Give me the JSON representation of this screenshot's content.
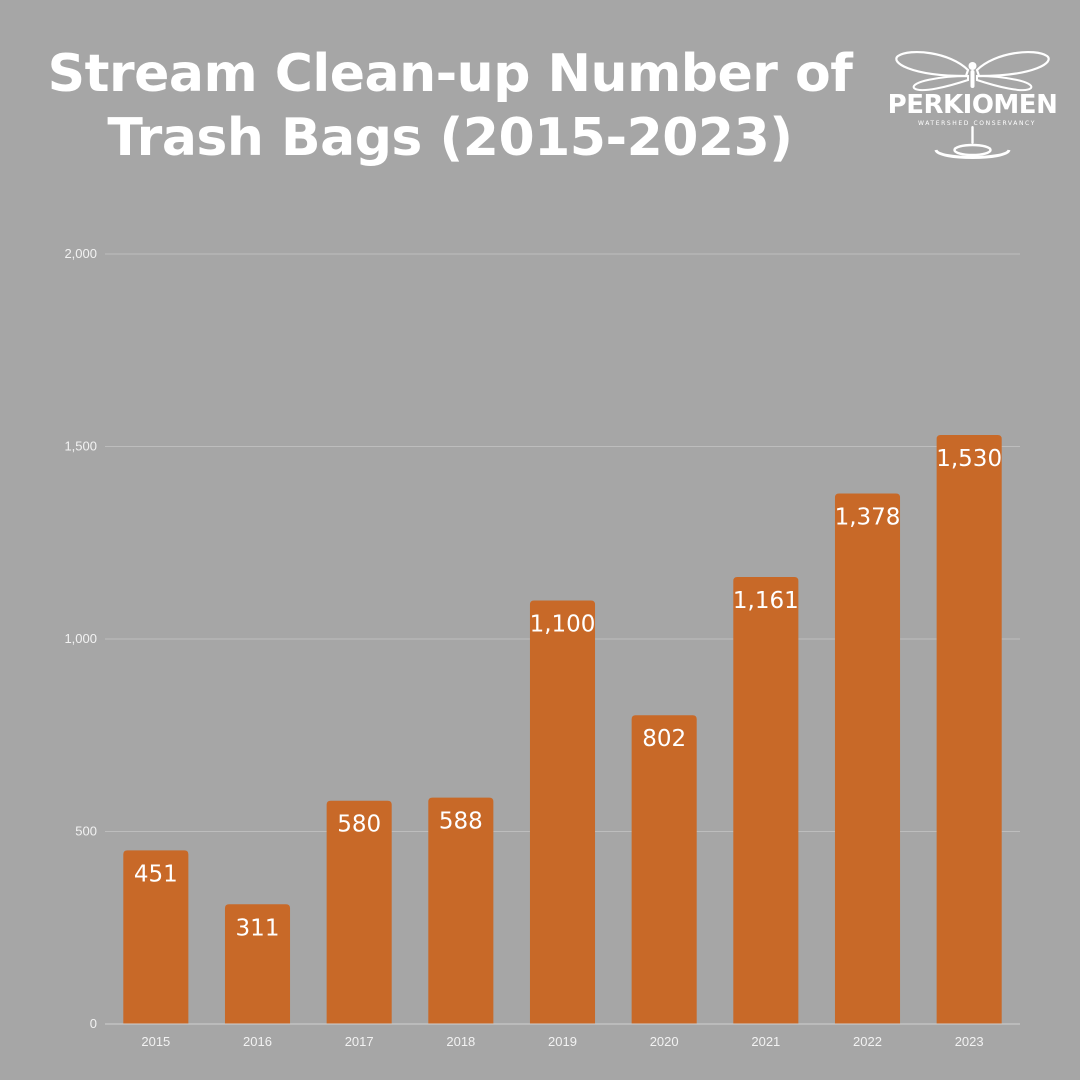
{
  "header": {
    "title_line1": "Stream Clean-up Number of",
    "title_line2": "Trash Bags (2015-2023)"
  },
  "logo": {
    "name": "PERKIOMEN",
    "tagline": "WATERSHED CONSERVANCY",
    "icon": "dragonfly-logo-icon"
  },
  "colors": {
    "background": "#a6a6a6",
    "bar": "#c86928",
    "text": "#ffffff",
    "grid": "#bdbdbd"
  },
  "chart_data": {
    "type": "bar",
    "title": "Stream Clean-up Number of Trash Bags (2015-2023)",
    "categories": [
      "2015",
      "2016",
      "2017",
      "2018",
      "2019",
      "2020",
      "2021",
      "2022",
      "2023"
    ],
    "values": [
      451,
      311,
      580,
      588,
      1100,
      802,
      1161,
      1378,
      1530
    ],
    "value_labels": [
      "451",
      "311",
      "580",
      "588",
      "1,100",
      "802",
      "1,161",
      "1,378",
      "1,530"
    ],
    "ylim": [
      0,
      2000
    ],
    "yticks": [
      0,
      500,
      1000,
      1500,
      2000
    ],
    "ytick_labels": [
      "0",
      "500",
      "1,000",
      "1,500",
      "2,000"
    ],
    "xlabel": "",
    "ylabel": "",
    "grid": true,
    "legend": "none"
  }
}
